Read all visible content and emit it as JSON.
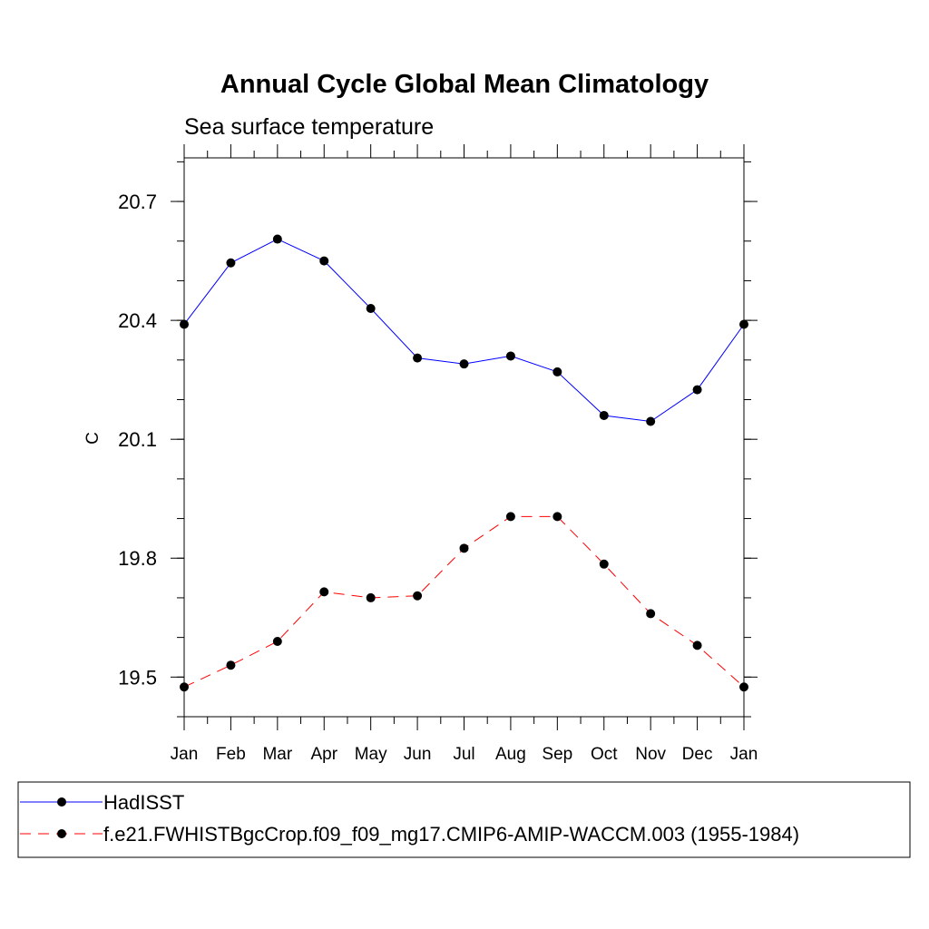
{
  "chart_data": {
    "type": "line",
    "title": "Annual Cycle Global Mean Climatology",
    "subtitle": "Sea surface temperature",
    "xlabel": "",
    "ylabel": "C",
    "categories": [
      "Jan",
      "Feb",
      "Mar",
      "Apr",
      "May",
      "Jun",
      "Jul",
      "Aug",
      "Sep",
      "Oct",
      "Nov",
      "Dec",
      "Jan"
    ],
    "ylim": [
      19.4,
      20.81
    ],
    "yticks": [
      19.5,
      19.8,
      20.1,
      20.4,
      20.7
    ],
    "ytick_labels": [
      "19.5",
      "19.8",
      "20.1",
      "20.4",
      "20.7"
    ],
    "yminor_step": 0.1,
    "grid": false,
    "legend_position": "bottom",
    "series": [
      {
        "name": "HadISST",
        "color": "#0000ff",
        "dash": "solid",
        "marker": "circle",
        "values": [
          20.39,
          20.545,
          20.605,
          20.55,
          20.43,
          20.305,
          20.29,
          20.31,
          20.27,
          20.16,
          20.145,
          20.225,
          20.39
        ]
      },
      {
        "name": "f.e21.FWHISTBgcCrop.f09_f09_mg17.CMIP6-AMIP-WACCM.003 (1955-1984)",
        "color": "#ff0000",
        "dash": "dashed",
        "marker": "circle",
        "values": [
          19.475,
          19.53,
          19.59,
          19.715,
          19.7,
          19.705,
          19.825,
          19.905,
          19.905,
          19.785,
          19.66,
          19.58,
          19.475
        ]
      }
    ]
  }
}
